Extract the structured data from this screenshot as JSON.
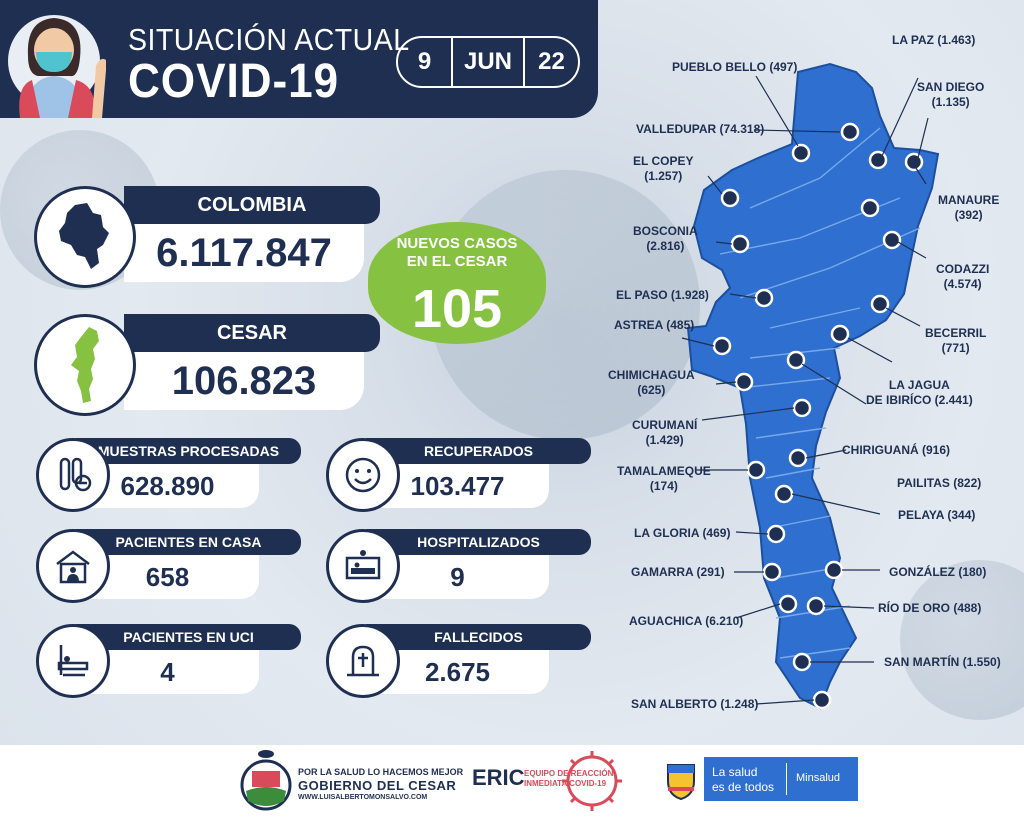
{
  "header": {
    "title_line1": "SITUACIÓN ACTUAL",
    "title_line2": "COVID-19",
    "day": "9",
    "month": "JUN",
    "year": "22"
  },
  "colombia": {
    "label": "COLOMBIA",
    "value": "6.117.847"
  },
  "cesar": {
    "label": "CESAR",
    "value": "106.823"
  },
  "new_cases": {
    "label_line1": "NUEVOS CASOS",
    "label_line2": "EN EL CESAR",
    "value": "105"
  },
  "stats": {
    "muestras": {
      "label": "MUESTRAS PROCESADAS",
      "value": "628.890",
      "icon": "test-tubes-icon"
    },
    "recuperados": {
      "label": "RECUPERADOS",
      "value": "103.477",
      "icon": "smiley-icon"
    },
    "casa": {
      "label": "PACIENTES EN CASA",
      "value": "658",
      "icon": "house-icon"
    },
    "hospitalizados": {
      "label": "HOSPITALIZADOS",
      "value": "9",
      "icon": "hospital-bed-icon"
    },
    "uci": {
      "label": "PACIENTES EN UCI",
      "value": "4",
      "icon": "icu-bed-icon"
    },
    "fallecidos": {
      "label": "FALLECIDOS",
      "value": "2.675",
      "icon": "grave-icon"
    }
  },
  "municipalities": {
    "la_paz": "LA PAZ (1.463)",
    "pueblo_bello": "PUEBLO BELLO (497)",
    "san_diego_1": "SAN DIEGO",
    "san_diego_2": "(1.135)",
    "valledupar": "VALLEDUPAR (74.318)",
    "el_copey_1": "EL COPEY",
    "el_copey_2": "(1.257)",
    "manaure_1": "MANAURE",
    "manaure_2": "(392)",
    "bosconia_1": "BOSCONIA",
    "bosconia_2": "(2.816)",
    "codazzi_1": "CODAZZI",
    "codazzi_2": "(4.574)",
    "el_paso": "EL PASO (1.928)",
    "astrea": "ASTREA (485)",
    "becerril_1": "BECERRIL",
    "becerril_2": "(771)",
    "chimichagua_1": "CHIMICHAGUA",
    "chimichagua_2": "(625)",
    "la_jagua_1": "LA JAGUA",
    "la_jagua_2": "DE IBIRÍCO (2.441)",
    "curumani_1": "CURUMANÍ",
    "curumani_2": "(1.429)",
    "chiriguana": "CHIRIGUANÁ (916)",
    "tamalameque_1": "TAMALAMEQUE",
    "tamalameque_2": "(174)",
    "pailitas": "PAILITAS (822)",
    "pelaya": "PELAYA (344)",
    "la_gloria": "LA GLORIA (469)",
    "gamarra": "GAMARRA (291)",
    "gonzalez": "GONZÁLEZ (180)",
    "aguachica": "AGUACHICA (6.210)",
    "rio_de_oro": "RÍO DE ORO (488)",
    "san_martin": "SAN MARTÍN (1.550)",
    "san_alberto": "SAN ALBERTO (1.248)"
  },
  "footer": {
    "gob_line1": "POR LA SALUD LO HACEMOS MEJOR",
    "gob_line2": "GOBIERNO DEL CESAR",
    "gob_line3": "WWW.LUISALBERTOMONSALVO.COM",
    "eric": "ERIC",
    "eric_line1": "EQUIPO DE REACCIÓN",
    "eric_line2": "INMEDIATA COVID-19",
    "minsalud_line1": "La salud",
    "minsalud_line2": "es de todos",
    "minsalud": "Minsalud"
  },
  "colors": {
    "navy": "#1f2f52",
    "green": "#86c142",
    "map_blue": "#2f6fcf"
  }
}
